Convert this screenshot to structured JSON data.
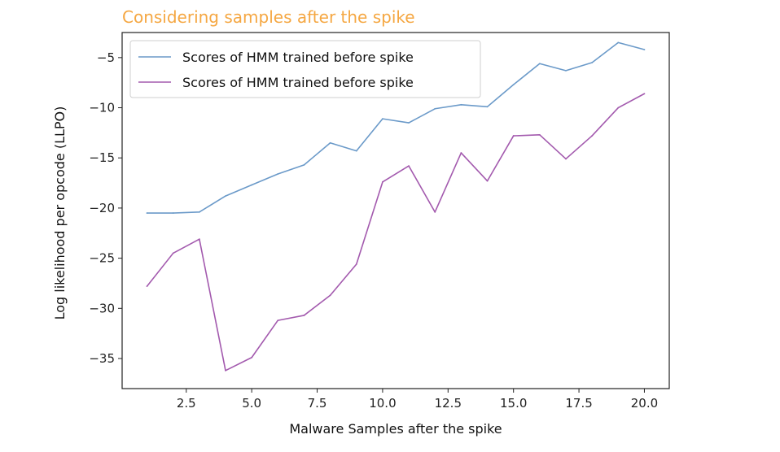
{
  "chart_data": {
    "type": "line",
    "title": "Considering samples after the spike",
    "title_color": "#f5a742",
    "xlabel": "Malware Samples after the spike",
    "ylabel": "Log likelihood per opcode (LLPO)",
    "xlim": [
      0.05,
      20.95
    ],
    "ylim": [
      -38.0,
      -2.5
    ],
    "xticks": [
      2.5,
      5.0,
      7.5,
      10.0,
      12.5,
      15.0,
      17.5,
      20.0
    ],
    "xtick_labels": [
      "2.5",
      "5.0",
      "7.5",
      "10.0",
      "12.5",
      "15.0",
      "17.5",
      "20.0"
    ],
    "yticks": [
      -35,
      -30,
      -25,
      -20,
      -15,
      -10,
      -5
    ],
    "ytick_labels": [
      "−35",
      "−30",
      "−25",
      "−20",
      "−15",
      "−10",
      "−5"
    ],
    "legend_position": "upper-left",
    "grid": false,
    "x": [
      1,
      2,
      3,
      4,
      5,
      6,
      7,
      8,
      9,
      10,
      11,
      12,
      13,
      14,
      15,
      16,
      17,
      18,
      19,
      20
    ],
    "series": [
      {
        "name": "Scores of HMM trained before spike",
        "color": "#6b9ac9",
        "values": [
          -20.5,
          -20.5,
          -20.4,
          -18.8,
          -17.7,
          -16.6,
          -15.7,
          -13.5,
          -14.3,
          -11.1,
          -11.5,
          -10.1,
          -9.7,
          -9.9,
          -7.7,
          -5.6,
          -6.3,
          -5.5,
          -3.5,
          -4.2
        ]
      },
      {
        "name": "Scores of HMM trained before spike",
        "color": "#a35aae",
        "values": [
          -27.8,
          -24.5,
          -23.1,
          -36.2,
          -34.9,
          -31.2,
          -30.7,
          -28.7,
          -25.6,
          -17.4,
          -15.8,
          -20.4,
          -14.5,
          -17.3,
          -12.8,
          -12.7,
          -15.1,
          -12.8,
          -10.0,
          -8.6
        ]
      }
    ]
  }
}
